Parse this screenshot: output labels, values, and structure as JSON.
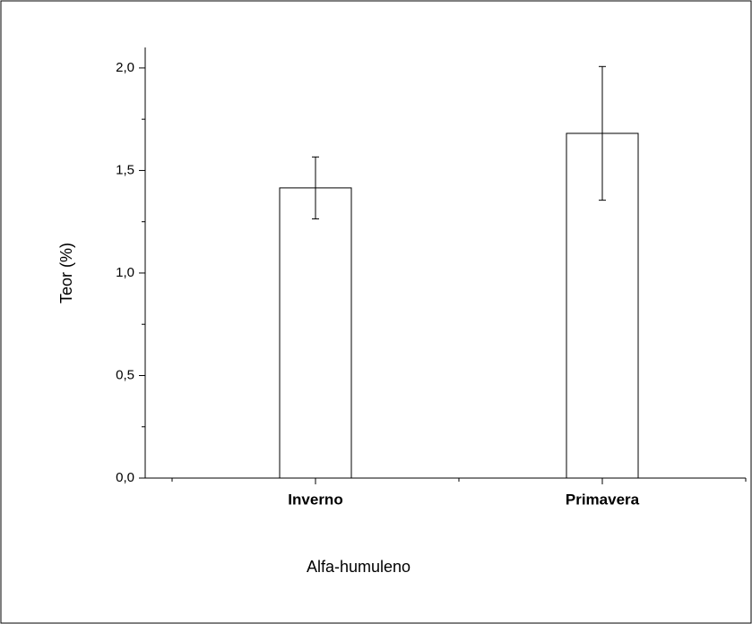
{
  "chart_data": {
    "type": "bar",
    "x_label": "Alfa-humuleno",
    "y_label": "Teor (%)",
    "categories": [
      "Inverno",
      "Primavera"
    ],
    "values": [
      1.415,
      1.681
    ],
    "errors": [
      0.151,
      0.326
    ],
    "color": "#ffffff",
    "ylim": [
      0,
      2.1
    ],
    "yticks": [
      {
        "value": 0,
        "label": "0,0"
      },
      {
        "value": 0.5,
        "label": "0,5"
      },
      {
        "value": 1,
        "label": "1,0"
      },
      {
        "value": 1.5,
        "label": "1,5"
      },
      {
        "value": 2,
        "label": "2,0"
      }
    ],
    "yticks_minor": [
      0.25,
      0.75,
      1.25,
      1.75
    ],
    "grid": false
  }
}
